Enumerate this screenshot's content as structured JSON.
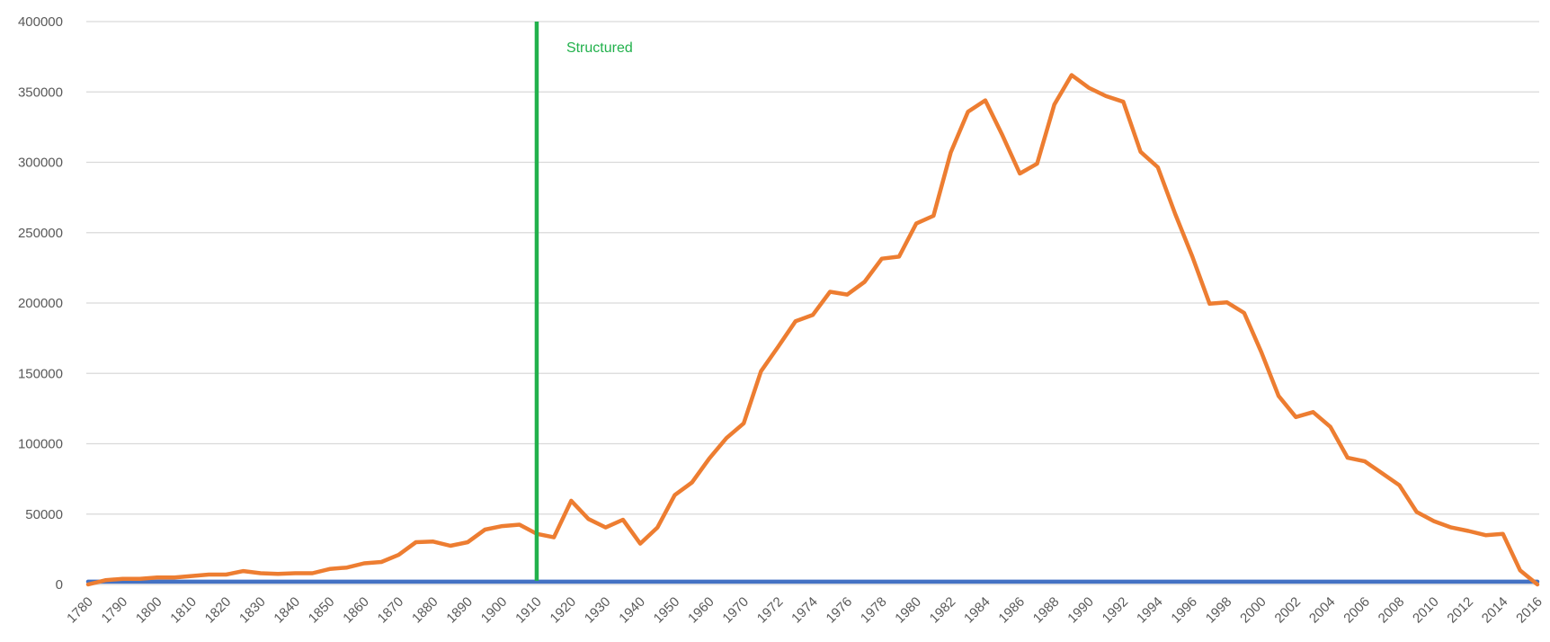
{
  "chart_data": {
    "type": "line",
    "title": "",
    "xlabel": "",
    "ylabel": "",
    "ylim": [
      0,
      400000
    ],
    "y_ticks": [
      "0",
      "50000",
      "100000",
      "150000",
      "200000",
      "250000",
      "300000",
      "350000",
      "400000"
    ],
    "grid": "horizontal",
    "legend": "none",
    "x_tick_labels": [
      "1780",
      "1790",
      "1800",
      "1810",
      "1820",
      "1830",
      "1840",
      "1850",
      "1860",
      "1870",
      "1880",
      "1890",
      "1900",
      "1910",
      "1920",
      "1930",
      "1940",
      "1950",
      "1960",
      "1970",
      "1972",
      "1974",
      "1976",
      "1978",
      "1980",
      "1982",
      "1984",
      "1986",
      "1988",
      "1990",
      "1992",
      "1994",
      "1996",
      "1998",
      "2000",
      "2002",
      "2004",
      "2006",
      "2008",
      "2010",
      "2012",
      "2014",
      "2016"
    ],
    "x_categories": [
      "1780",
      "1785",
      "1790",
      "1795",
      "1800",
      "1805",
      "1810",
      "1815",
      "1820",
      "1825",
      "1830",
      "1835",
      "1840",
      "1845",
      "1850",
      "1855",
      "1860",
      "1865",
      "1870",
      "1875",
      "1880",
      "1885",
      "1890",
      "1895",
      "1900",
      "1905",
      "1910",
      "1915",
      "1920",
      "1925",
      "1930",
      "1935",
      "1940",
      "1945",
      "1950",
      "1955",
      "1960",
      "1965",
      "1970",
      "1971",
      "1972",
      "1973",
      "1974",
      "1975",
      "1976",
      "1977",
      "1978",
      "1979",
      "1980",
      "1981",
      "1982",
      "1983",
      "1984",
      "1985",
      "1986",
      "1987",
      "1988",
      "1989",
      "1990",
      "1991",
      "1992",
      "1993",
      "1994",
      "1995",
      "1996",
      "1997",
      "1998",
      "1999",
      "2000",
      "2001",
      "2002",
      "2003",
      "2004",
      "2005",
      "2006",
      "2007",
      "2008",
      "2009",
      "2010",
      "2011",
      "2012",
      "2013",
      "2014",
      "2015",
      "2016"
    ],
    "series": [
      {
        "color": "#ED7D31",
        "values": [
          0,
          3000,
          4000,
          4000,
          5000,
          5000,
          6000,
          7000,
          7000,
          9500,
          8000,
          7500,
          8000,
          8000,
          11000,
          12000,
          15000,
          16000,
          21000,
          30000,
          30500,
          27500,
          30000,
          39000,
          41500,
          42500,
          36000,
          33500,
          59500,
          46500,
          40500,
          46000,
          29000,
          40500,
          63500,
          72500,
          89500,
          104000,
          114500,
          151500,
          169000,
          187000,
          191500,
          208000,
          206000,
          215000,
          231500,
          233000,
          256500,
          262000,
          307000,
          336000,
          344000,
          319000,
          292000,
          299000,
          341000,
          362000,
          353000,
          347000,
          343000,
          307500,
          296500,
          263500,
          233000,
          199500,
          200500,
          193000,
          165000,
          134000,
          119000,
          122500,
          112000,
          90000,
          87500,
          79000,
          70500,
          51500,
          45000,
          40500,
          38000,
          35000,
          36000,
          10000,
          0
        ]
      },
      {
        "color": "#4472C4",
        "values": [
          2000,
          2000,
          2000,
          2000,
          2000,
          2000,
          2000,
          2000,
          2000,
          2000,
          2000,
          2000,
          2000,
          2000,
          2000,
          2000,
          2000,
          2000,
          2000,
          2000,
          2000,
          2000,
          2000,
          2000,
          2000,
          2000,
          2000,
          2000,
          2000,
          2000,
          2000,
          2000,
          2000,
          2000,
          2000,
          2000,
          2000,
          2000,
          2000,
          2000,
          2000,
          2000,
          2000,
          2000,
          2000,
          2000,
          2000,
          2000,
          2000,
          2000,
          2000,
          2000,
          2000,
          2000,
          2000,
          2000,
          2000,
          2000,
          2000,
          2000,
          2000,
          2000,
          2000,
          2000,
          2000,
          2000,
          2000,
          2000,
          2000,
          2000,
          2000,
          2000,
          2000,
          2000,
          2000,
          2000,
          2000,
          2000,
          2000,
          2000,
          2000,
          2000,
          2000,
          2000,
          2000
        ]
      }
    ],
    "annotation": {
      "label": "Structured",
      "at": "1910",
      "color": "#22B14C"
    }
  }
}
